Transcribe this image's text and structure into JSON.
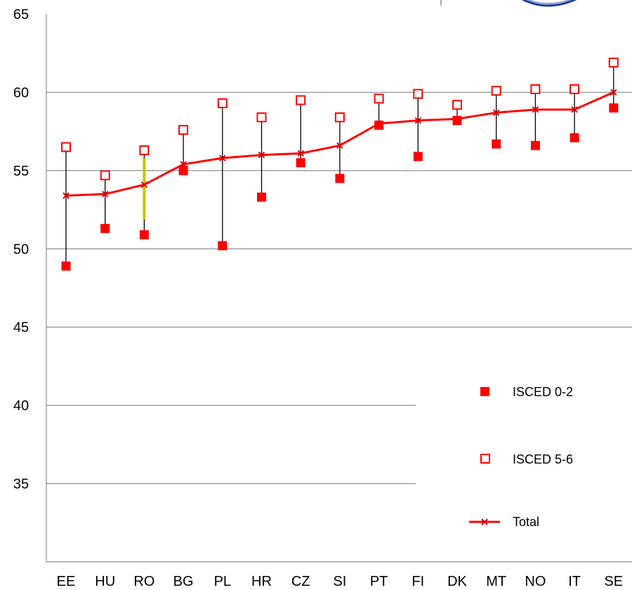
{
  "chart_data": {
    "type": "line",
    "categories": [
      "EE",
      "HU",
      "RO",
      "BG",
      "PL",
      "HR",
      "CZ",
      "SI",
      "PT",
      "FI",
      "DK",
      "MT",
      "NO",
      "IT",
      "SE"
    ],
    "series": [
      {
        "name": "ISCED 0-2",
        "marker": "filled-square",
        "color": "#ff0000",
        "values": [
          48.9,
          51.3,
          50.9,
          55.0,
          50.2,
          53.3,
          55.5,
          54.5,
          57.9,
          55.9,
          58.2,
          56.7,
          56.6,
          57.1,
          59.0
        ]
      },
      {
        "name": "ISCED 5-6",
        "marker": "open-square",
        "color": "#ff0000",
        "values": [
          56.5,
          54.7,
          56.3,
          57.6,
          59.3,
          58.4,
          59.5,
          58.4,
          59.6,
          59.9,
          59.2,
          60.1,
          60.2,
          60.2,
          61.9
        ]
      },
      {
        "name": "Total",
        "marker": "x-line",
        "color": "#ff0000",
        "values": [
          53.4,
          53.5,
          54.1,
          55.4,
          55.8,
          56.0,
          56.1,
          56.6,
          58.0,
          58.2,
          58.3,
          58.7,
          58.9,
          58.9,
          60.0
        ]
      }
    ],
    "range_lines": {
      "color": "#000000"
    },
    "highlight": {
      "category": "RO",
      "from": 51.9,
      "to": 55.8,
      "color": "#c8c400"
    },
    "y_ticks": [
      35,
      40,
      45,
      50,
      55,
      60,
      65
    ],
    "ylim": [
      30,
      65
    ],
    "grid": true,
    "legend_position": "bottom-right",
    "title": "",
    "xlabel": "",
    "ylabel": ""
  }
}
